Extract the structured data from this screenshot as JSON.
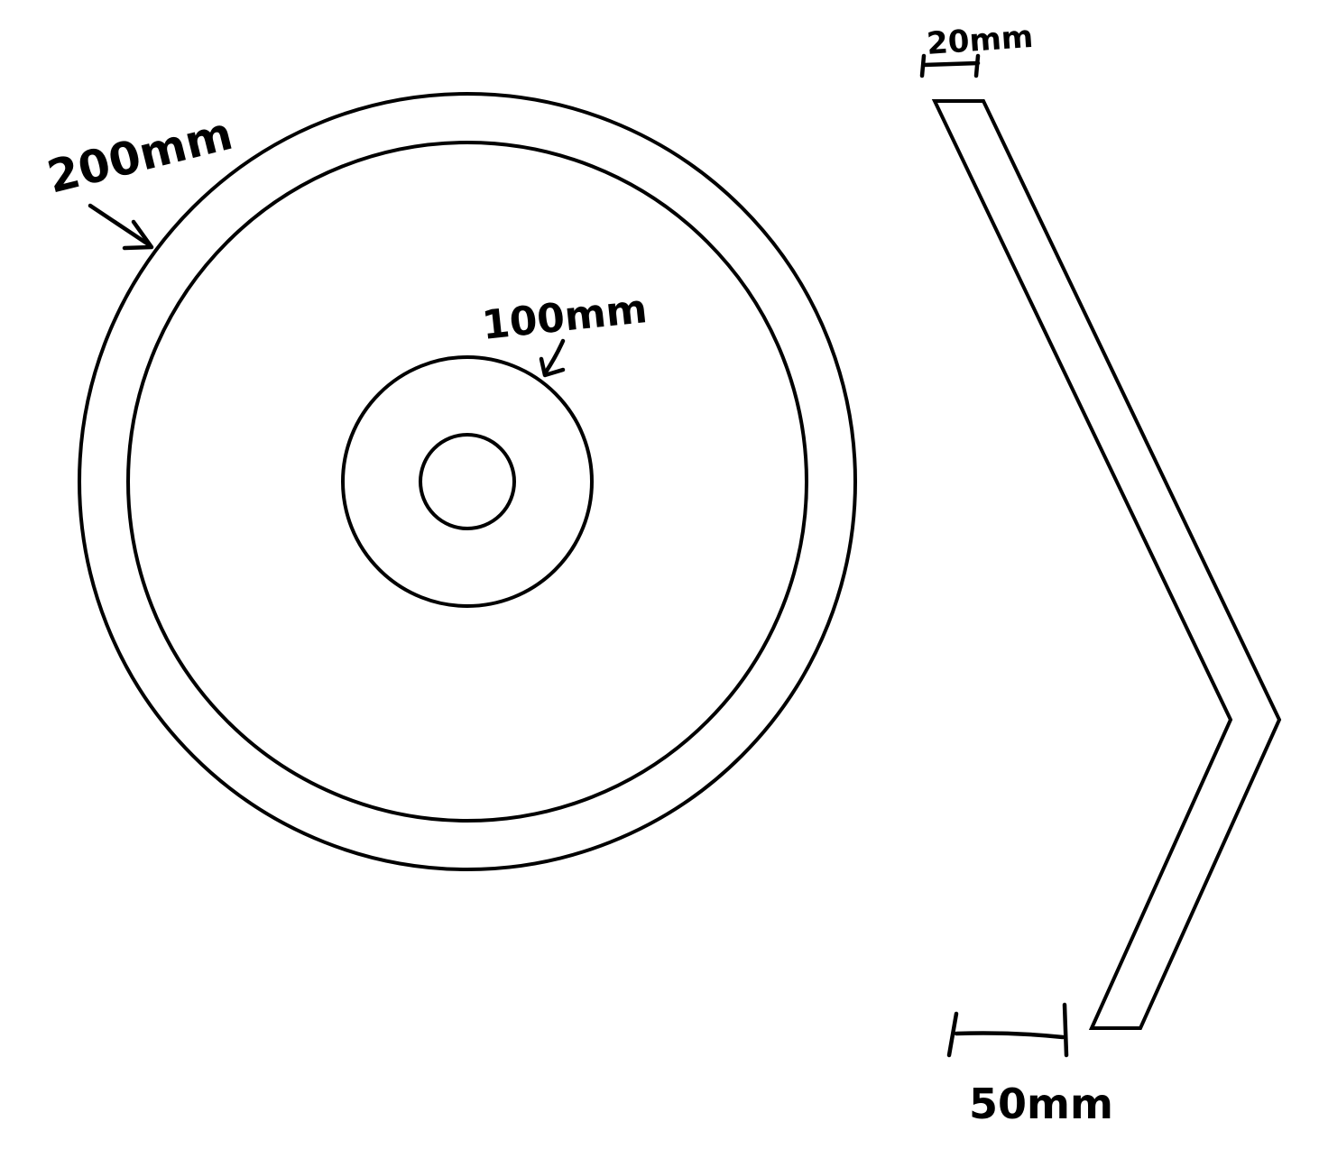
{
  "labels": {
    "outer_diameter": "200mm",
    "hub_diameter": "100mm",
    "thickness": "20mm",
    "offset": "50mm"
  },
  "colors": {
    "ink": "#000000",
    "paper": "#ffffff"
  }
}
